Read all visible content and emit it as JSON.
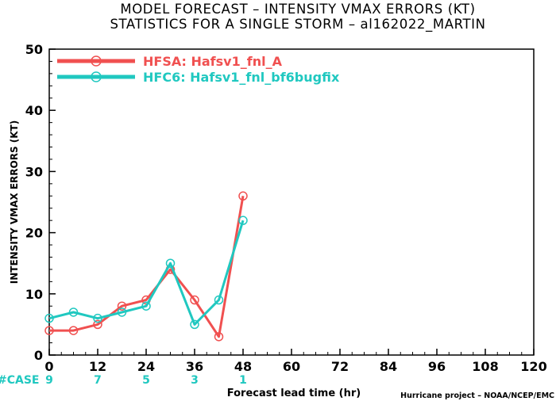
{
  "title_line1": "MODEL FORECAST – INTENSITY VMAX ERRORS (KT)",
  "title_line2": "STATISTICS FOR A SINGLE STORM – al162022_MARTIN",
  "case_label": "#CASE",
  "credit": "Hurricane project – NOAA/NCEP/EMC",
  "colors": {
    "hfsa": "#f05050",
    "hfc6": "#20c8c0"
  },
  "chart_data": {
    "type": "line",
    "xlabel": "Forecast lead time (hr)",
    "ylabel": "INTENSITY VMAX ERRORS (KT)",
    "xlim": [
      0,
      120
    ],
    "ylim": [
      0,
      50
    ],
    "x_ticks": [
      "0",
      "12",
      "24",
      "36",
      "48",
      "60",
      "72",
      "84",
      "96",
      "108",
      "120"
    ],
    "y_ticks": [
      "0",
      "10",
      "20",
      "30",
      "40",
      "50"
    ],
    "grid": false,
    "legend_position": "top-left",
    "case_counts": [
      {
        "x": 0,
        "label": "9"
      },
      {
        "x": 12,
        "label": "7"
      },
      {
        "x": 24,
        "label": "5"
      },
      {
        "x": 36,
        "label": "3"
      },
      {
        "x": 48,
        "label": "1"
      }
    ],
    "series": [
      {
        "name": "HFSA: Hafsv1_fnl_A",
        "color": "#f05050",
        "x": [
          0,
          6,
          12,
          18,
          24,
          30,
          36,
          42,
          48
        ],
        "values": [
          4,
          4,
          5,
          8,
          9,
          14,
          9,
          3,
          26
        ]
      },
      {
        "name": "HFC6: Hafsv1_fnl_bf6bugfix",
        "color": "#20c8c0",
        "x": [
          0,
          6,
          12,
          18,
          24,
          30,
          36,
          42,
          48
        ],
        "values": [
          6,
          7,
          6,
          7,
          8,
          15,
          5,
          9,
          22
        ]
      }
    ]
  }
}
